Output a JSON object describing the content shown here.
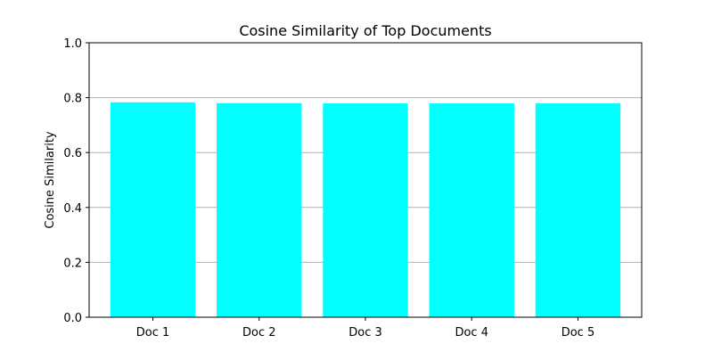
{
  "chart_data": {
    "type": "bar",
    "title": "Cosine Similarity of Top Documents",
    "xlabel": "",
    "ylabel": "Cosine Similarity",
    "categories": [
      "Doc 1",
      "Doc 2",
      "Doc 3",
      "Doc 4",
      "Doc 5"
    ],
    "values": [
      0.783,
      0.78,
      0.779,
      0.779,
      0.779
    ],
    "ylim": [
      0,
      1.0
    ],
    "yticks": [
      "0.0",
      "0.2",
      "0.4",
      "0.6",
      "0.8",
      "1.0"
    ],
    "grid": "horizontal",
    "bar_color": "#00ffff",
    "grid_color": "#b0b0b0"
  }
}
